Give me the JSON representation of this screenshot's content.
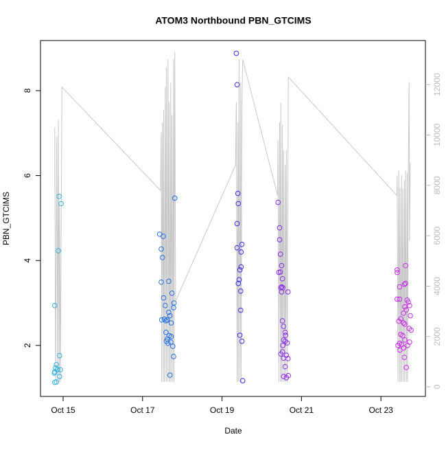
{
  "chart_data": {
    "type": "scatter",
    "title": "ATOM3 Northbound PBN_GTCIMS",
    "x_label": "Date",
    "y_label": "PBN_GTCIMS",
    "xlim": [
      14.43,
      24.12
    ],
    "xticks": [
      {
        "value": 15,
        "label": "Oct 15"
      },
      {
        "value": 17,
        "label": "Oct 17"
      },
      {
        "value": 19,
        "label": "Oct 19"
      },
      {
        "value": 21,
        "label": "Oct 21"
      },
      {
        "value": 23,
        "label": "Oct 23"
      }
    ],
    "ylim": [
      0.8,
      9.18
    ],
    "yticks": [
      2,
      4,
      6,
      8
    ],
    "y2lim": [
      -380,
      13750
    ],
    "y2ticks": [
      0,
      2000,
      4000,
      6000,
      8000,
      10000,
      12000
    ],
    "series": [
      {
        "color": "#2eaee0",
        "x": [
          14.79,
          14.9,
          14.95,
          14.88,
          14.91,
          14.83,
          14.81,
          14.86,
          14.93,
          14.79,
          14.78,
          14.91,
          14.83,
          14.79
        ],
        "values": [
          2.94,
          5.51,
          5.34,
          4.23,
          1.76,
          1.55,
          1.47,
          1.43,
          1.43,
          1.38,
          1.35,
          1.27,
          1.14,
          1.13
        ]
      },
      {
        "color": "#1f6fe8",
        "x": [
          17.43,
          17.52,
          17.47,
          17.5,
          17.81,
          17.47,
          17.66,
          17.53,
          17.74,
          17.57,
          17.79,
          17.48,
          17.55,
          17.59,
          17.62,
          17.66,
          17.69,
          17.78,
          17.72,
          17.59,
          17.62,
          17.67,
          17.72,
          17.64,
          17.71,
          17.76,
          17.78,
          17.69,
          17.6
        ],
        "values": [
          4.62,
          4.57,
          4.27,
          4.07,
          5.47,
          3.49,
          3.51,
          3.12,
          3.23,
          2.94,
          3.0,
          2.6,
          2.62,
          2.58,
          2.6,
          2.78,
          2.7,
          2.89,
          2.53,
          2.31,
          2.15,
          2.23,
          2.21,
          2.05,
          2.08,
          1.98,
          1.74,
          1.3,
          2.1
        ]
      },
      {
        "color": "#3a2ae8",
        "x": [
          19.36,
          19.38,
          19.4,
          19.41,
          19.38,
          19.5,
          19.48,
          19.38,
          19.48,
          19.45,
          19.43,
          19.41,
          19.47,
          19.47,
          19.45,
          19.5,
          19.52
        ],
        "values": [
          8.88,
          8.14,
          5.58,
          5.34,
          4.87,
          4.38,
          4.2,
          4.3,
          3.85,
          3.78,
          3.55,
          3.46,
          3.28,
          2.83,
          2.24,
          2.1,
          1.17
        ]
      },
      {
        "color": "#8a2ae8",
        "x": [
          20.41,
          20.45,
          20.45,
          20.47,
          20.5,
          20.43,
          20.47,
          20.52,
          20.5,
          20.48,
          20.53,
          20.66,
          20.5,
          20.52,
          20.55,
          20.59,
          20.6,
          20.55,
          20.59,
          20.53,
          20.64,
          20.52,
          20.48,
          20.55,
          20.62,
          20.66,
          20.59,
          20.55,
          20.62,
          20.67
        ],
        "values": [
          5.37,
          4.77,
          4.49,
          4.15,
          3.88,
          3.72,
          3.73,
          3.57,
          3.38,
          3.36,
          3.36,
          3.26,
          3.26,
          2.58,
          2.45,
          2.31,
          2.24,
          2.13,
          2.1,
          2.0,
          2.06,
          1.85,
          1.8,
          1.7,
          1.77,
          1.69,
          1.5,
          1.27,
          1.24,
          1.29
        ]
      },
      {
        "color": "#c92ae8",
        "x": [
          23.41,
          23.41,
          23.47,
          23.59,
          23.62,
          23.62,
          23.41,
          23.47,
          23.66,
          23.69,
          23.72,
          23.6,
          23.57,
          23.64,
          23.74,
          23.45,
          23.5,
          23.57,
          23.6,
          23.71,
          23.76,
          23.5,
          23.55,
          23.6,
          23.47,
          23.52,
          23.67,
          23.72,
          23.48,
          23.57,
          23.43,
          23.59,
          23.64
        ],
        "values": [
          3.78,
          3.72,
          3.38,
          3.44,
          3.46,
          3.88,
          3.09,
          3.09,
          3.07,
          3.02,
          2.94,
          2.91,
          2.76,
          2.84,
          2.7,
          2.57,
          2.63,
          2.53,
          2.5,
          2.4,
          2.36,
          2.26,
          2.23,
          2.13,
          2.05,
          2.02,
          2.0,
          2.08,
          1.89,
          1.94,
          2.0,
          1.72,
          1.48
        ]
      },
      {
        "mode": "line",
        "axis": "y2",
        "color": "#c8c8c8",
        "x": [
          14.79,
          14.79,
          14.81,
          14.83,
          14.84,
          14.86,
          14.88,
          14.9,
          14.91,
          14.93,
          14.97,
          17.45,
          17.47,
          17.48,
          17.5,
          17.52,
          17.53,
          17.55,
          17.57,
          17.59,
          17.6,
          17.62,
          17.64,
          17.66,
          17.67,
          17.69,
          17.71,
          17.72,
          17.74,
          17.76,
          17.78,
          17.79,
          17.81,
          17.83,
          19.34,
          19.36,
          19.38,
          19.4,
          19.41,
          19.43,
          19.45,
          19.47,
          19.48,
          19.5,
          19.52,
          20.4,
          20.41,
          20.43,
          20.45,
          20.47,
          20.48,
          20.5,
          20.52,
          20.53,
          20.55,
          20.57,
          20.59,
          20.6,
          20.62,
          20.64,
          20.66,
          20.67,
          23.4,
          23.41,
          23.43,
          23.45,
          23.47,
          23.48,
          23.5,
          23.52,
          23.53,
          23.55,
          23.57,
          23.59,
          23.6,
          23.62,
          23.64,
          23.66,
          23.67,
          23.69,
          23.71,
          23.72,
          23.74
        ],
        "values": [
          7900,
          10300,
          200,
          6700,
          9950,
          200,
          10600,
          200,
          7200,
          200,
          11900,
          7800,
          10100,
          200,
          10500,
          200,
          11000,
          200,
          11900,
          200,
          12700,
          200,
          13000,
          200,
          11300,
          200,
          12100,
          200,
          10800,
          200,
          13000,
          200,
          13300,
          3400,
          8800,
          11300,
          200,
          10500,
          200,
          13000,
          200,
          12100,
          200,
          11000,
          13000,
          7600,
          9800,
          200,
          10500,
          200,
          11300,
          200,
          10400,
          200,
          9400,
          200,
          8800,
          200,
          9400,
          200,
          8800,
          12300,
          7600,
          8400,
          200,
          8600,
          200,
          7900,
          200,
          8400,
          200,
          7900,
          200,
          8200,
          200,
          8600,
          200,
          8500,
          200,
          8700,
          12100,
          5800,
          8900
        ]
      }
    ]
  }
}
